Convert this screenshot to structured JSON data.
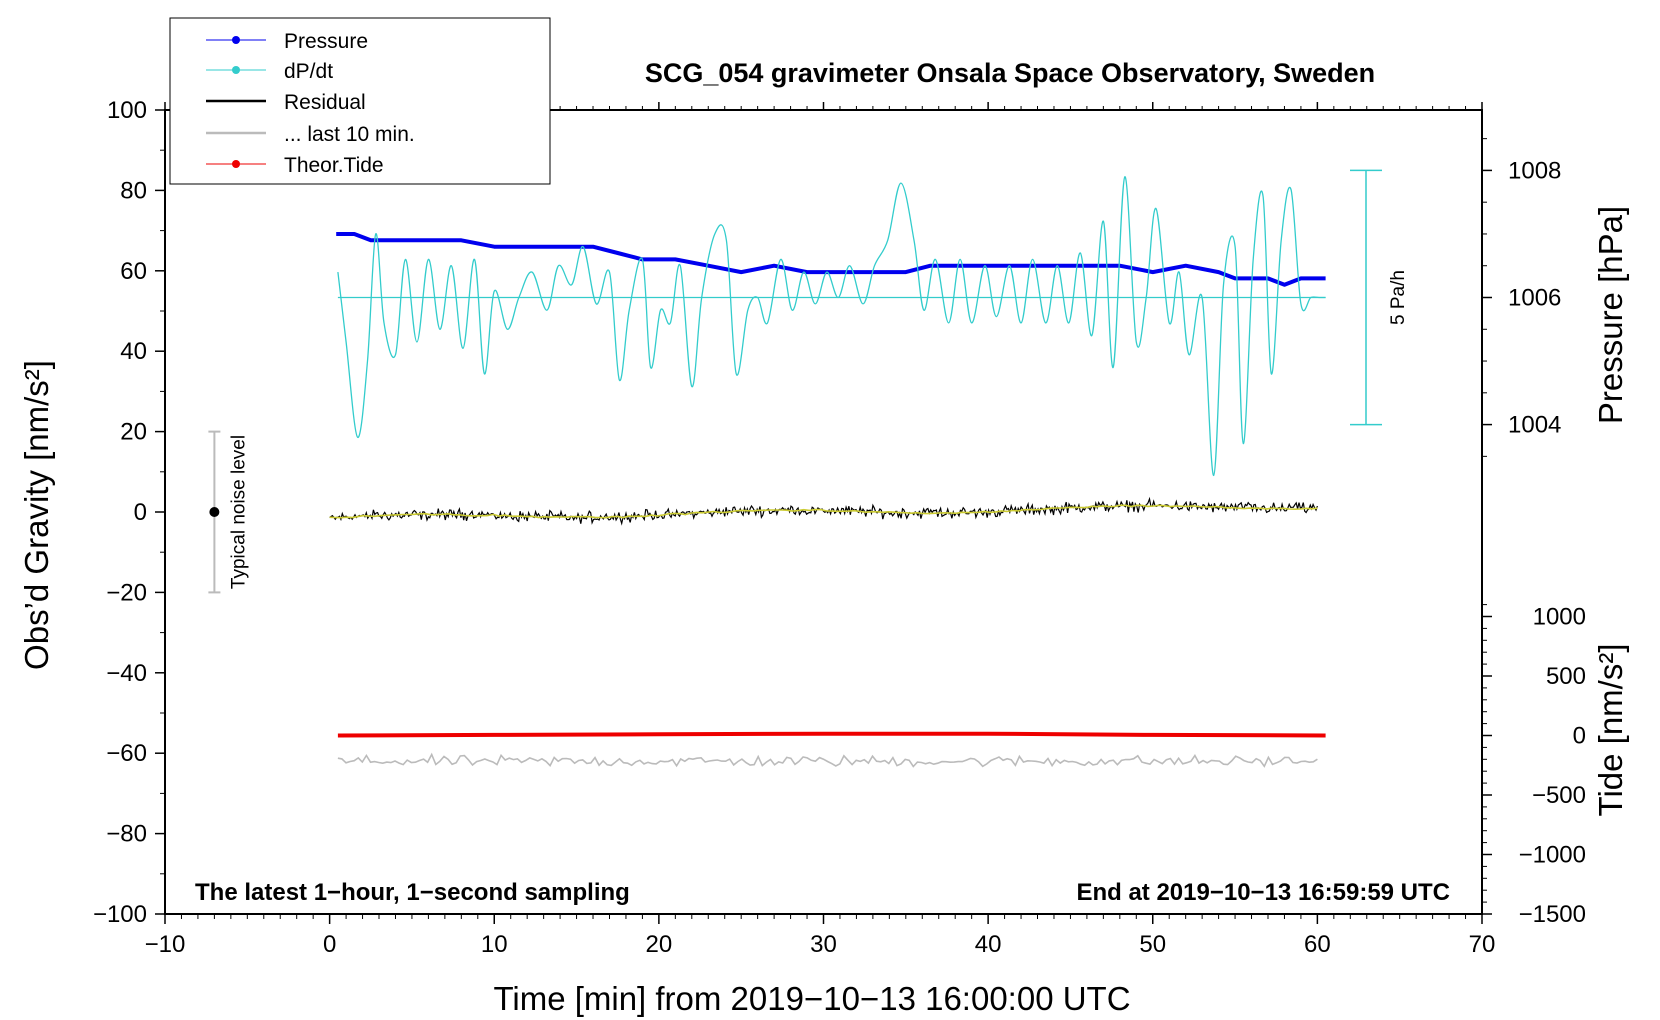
{
  "chart_data": {
    "type": "line",
    "title": "SCG_054 gravimeter Onsala Space Observatory, Sweden",
    "xlabel": "Time [min] from 2019−10−13 16:00:00 UTC",
    "ylabel_left": "Obs’d Gravity [nm/s²]",
    "ylabel_pressure": "Pressure [hPa]",
    "ylabel_tide": "Tide [nm/s²]",
    "xlim": [
      -10,
      70
    ],
    "ylim": [
      -100,
      100
    ],
    "pressure_ylim": [
      1003.6,
      1008.4
    ],
    "tide_ylim": [
      -1500,
      1500
    ],
    "x_ticks": [
      -10,
      0,
      10,
      20,
      30,
      40,
      50,
      60,
      70
    ],
    "x_tick_labels": [
      "−10",
      "0",
      "10",
      "20",
      "30",
      "40",
      "50",
      "60",
      "70"
    ],
    "y_ticks": [
      -100,
      -80,
      -60,
      -40,
      -20,
      0,
      20,
      40,
      60,
      80,
      100
    ],
    "y_tick_labels": [
      "−100",
      "−80",
      "−60",
      "−40",
      "−20",
      "0",
      "20",
      "40",
      "60",
      "80",
      "100"
    ],
    "pressure_ticks": [
      1004,
      1006,
      1008
    ],
    "pressure_tick_labels": [
      "1004",
      "1006",
      "1008"
    ],
    "tide_ticks": [
      -1500,
      -1000,
      -500,
      0,
      500,
      1000
    ],
    "tide_tick_labels": [
      "−1500",
      "−1000",
      "−500",
      "0",
      "500",
      "1000"
    ],
    "legend": [
      {
        "name": "Pressure",
        "color": "#0000ee",
        "marker": true
      },
      {
        "name": "dP/dt",
        "color": "#33cccc",
        "marker": true
      },
      {
        "name": "Residual",
        "color": "#000000",
        "marker": false
      },
      {
        "name": "... last 10 min.",
        "color": "#bbbbbb",
        "marker": false
      },
      {
        "name": "Theor.Tide",
        "color": "#ee0000",
        "marker": true
      }
    ],
    "series": [
      {
        "name": "Pressure",
        "axis": "pressure",
        "color": "#0000ee",
        "x": [
          0.4,
          1.5,
          2.5,
          4,
          6,
          8,
          10,
          12,
          14,
          16,
          17.5,
          19,
          21,
          23,
          25,
          27,
          29,
          31,
          33,
          35,
          36.5,
          38,
          40,
          42,
          44,
          46,
          48,
          50,
          52,
          54,
          55,
          57,
          58,
          59,
          60.5
        ],
        "y": [
          1007.0,
          1007.0,
          1006.9,
          1006.9,
          1006.9,
          1006.9,
          1006.8,
          1006.8,
          1006.8,
          1006.8,
          1006.7,
          1006.6,
          1006.6,
          1006.5,
          1006.4,
          1006.5,
          1006.4,
          1006.4,
          1006.4,
          1006.4,
          1006.5,
          1006.5,
          1006.5,
          1006.5,
          1006.5,
          1006.5,
          1006.5,
          1006.4,
          1006.5,
          1006.4,
          1006.3,
          1006.3,
          1006.2,
          1006.3,
          1006.3
        ]
      },
      {
        "name": "dP/dt",
        "axis": "pressure",
        "color": "#33cccc",
        "x": [
          0.5,
          1,
          1.7,
          2.3,
          2.8,
          3.3,
          4,
          4.6,
          5.3,
          6,
          6.7,
          7.4,
          8.1,
          8.8,
          9.4,
          10,
          10.8,
          11.5,
          12.3,
          13.2,
          13.9,
          14.7,
          15.4,
          16.2,
          17,
          17.6,
          18.2,
          19,
          19.5,
          20.1,
          20.7,
          21.3,
          22,
          22.6,
          23.4,
          24.1,
          24.7,
          25.4,
          26,
          26.6,
          27.4,
          28.1,
          28.8,
          29.5,
          30.2,
          30.9,
          31.6,
          32.4,
          33.1,
          33.9,
          34.7,
          35.5,
          36.1,
          36.8,
          37.6,
          38.3,
          39,
          39.8,
          40.5,
          41.3,
          42,
          42.7,
          43.5,
          44.2,
          44.9,
          45.6,
          46.3,
          47,
          47.6,
          48.3,
          49,
          49.6,
          50.2,
          51,
          51.6,
          52.2,
          53,
          53.7,
          54.3,
          55,
          55.5,
          56.1,
          56.7,
          57.2,
          57.8,
          58.4,
          59,
          59.6,
          60.1,
          60.5
        ],
        "y": [
          1006.4,
          1005.3,
          1003.8,
          1005.0,
          1007.0,
          1005.6,
          1005.1,
          1006.6,
          1005.3,
          1006.6,
          1005.5,
          1006.5,
          1005.2,
          1006.6,
          1004.8,
          1006.1,
          1005.5,
          1006.0,
          1006.4,
          1005.8,
          1006.5,
          1006.2,
          1006.8,
          1005.9,
          1006.4,
          1004.7,
          1005.8,
          1006.6,
          1004.9,
          1005.8,
          1005.6,
          1006.5,
          1004.6,
          1006.0,
          1007.0,
          1006.9,
          1004.8,
          1005.8,
          1006.0,
          1005.6,
          1006.6,
          1005.8,
          1006.4,
          1005.9,
          1006.4,
          1006.0,
          1006.5,
          1005.9,
          1006.5,
          1006.9,
          1007.8,
          1006.9,
          1005.8,
          1006.6,
          1005.6,
          1006.6,
          1005.6,
          1006.5,
          1005.7,
          1006.5,
          1005.6,
          1006.6,
          1005.6,
          1006.5,
          1005.6,
          1006.7,
          1005.4,
          1007.2,
          1004.9,
          1007.9,
          1005.3,
          1006.0,
          1007.4,
          1005.6,
          1006.4,
          1005.1,
          1006.0,
          1003.2,
          1006.2,
          1006.8,
          1003.7,
          1006.6,
          1007.6,
          1004.8,
          1006.9,
          1007.7,
          1005.9,
          1006.0,
          1006.0,
          1006.0
        ]
      },
      {
        "name": "dP/dt baseline",
        "axis": "pressure",
        "color": "#33cccc",
        "x": [
          0.5,
          60.5
        ],
        "y": [
          1006.0,
          1006.0
        ]
      },
      {
        "name": "Residual",
        "axis": "gravity",
        "color": "#000000",
        "x_range": [
          0,
          60
        ],
        "trend_start": -1.5,
        "trend_end": 1.5,
        "noise_amplitude": 2
      },
      {
        "name": "... last 10 min.",
        "axis": "gravity",
        "color": "#bbbbbb",
        "x_range": [
          0.5,
          60
        ],
        "level": -62,
        "noise_amplitude": 2
      },
      {
        "name": "Theor.Tide",
        "axis": "tide",
        "color": "#ee0000",
        "x": [
          0.5,
          10,
          20,
          30,
          40,
          50,
          60.5
        ],
        "y": [
          0,
          5,
          10,
          15,
          15,
          5,
          0
        ]
      }
    ],
    "scale_bar": {
      "label": "5 Pa/h",
      "center": 1006.0,
      "half_range": 2.0
    },
    "noise_bar": {
      "label": "Typical noise level",
      "x": -7,
      "center": 0,
      "half_range": 20
    },
    "annotations": {
      "bottom_left": "The latest 1−hour, 1−second sampling",
      "bottom_right": "End at 2019−10−13 16:59:59 UTC"
    }
  }
}
